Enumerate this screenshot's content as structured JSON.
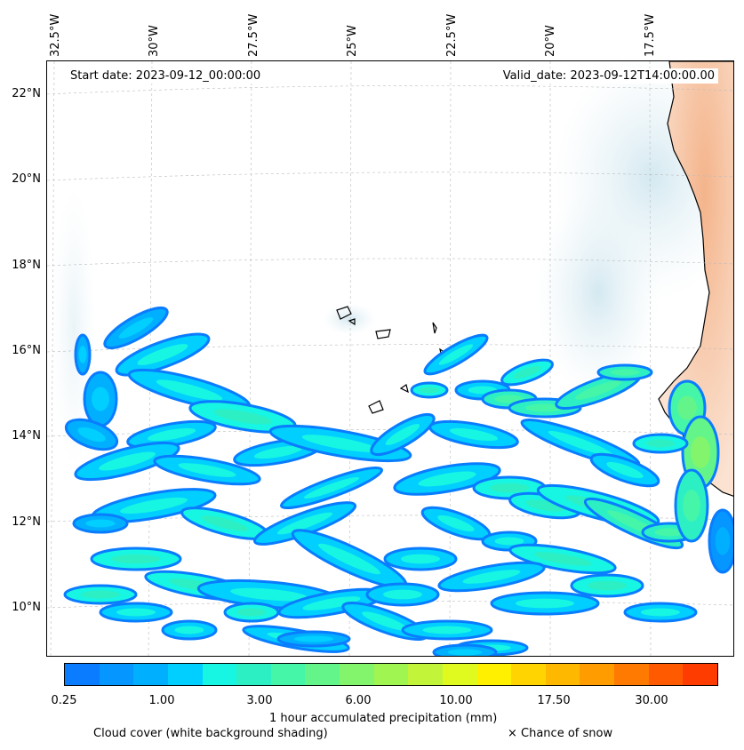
{
  "map": {
    "start_date": "Start date: 2023-09-12_00:00:00",
    "valid_date": "Valid_date: 2023-09-12T14:00:00.00",
    "lon_labels": [
      "32.5°W",
      "30°W",
      "27.5°W",
      "25°W",
      "22.5°W",
      "20°W",
      "17.5°W"
    ],
    "lat_labels": [
      "22°N",
      "20°N",
      "18°N",
      "16°N",
      "14°N",
      "12°N",
      "10°N"
    ],
    "extent": {
      "lon_min": -32.5,
      "lon_max": -15.5,
      "lat_min": 9.0,
      "lat_max": 22.5
    }
  },
  "legend": {
    "colorbar_label": "1 hour accumulated precipitation (mm)",
    "tick_labels": [
      "0.25",
      "1.00",
      "3.00",
      "6.00",
      "10.00",
      "17.50",
      "30.00"
    ],
    "colors": [
      "#0a7cff",
      "#0596ff",
      "#00b0ff",
      "#00cfff",
      "#17f5e3",
      "#2cf0c4",
      "#45f5a8",
      "#63f58a",
      "#82f56c",
      "#a0f550",
      "#c2f53a",
      "#e0fa20",
      "#fff000",
      "#ffd400",
      "#ffb800",
      "#ff9c00",
      "#ff7a00",
      "#ff5a00",
      "#ff3c00"
    ],
    "cloud_cover_caption": "Cloud cover (white background shading)",
    "snow_caption": "× Chance of snow"
  }
}
